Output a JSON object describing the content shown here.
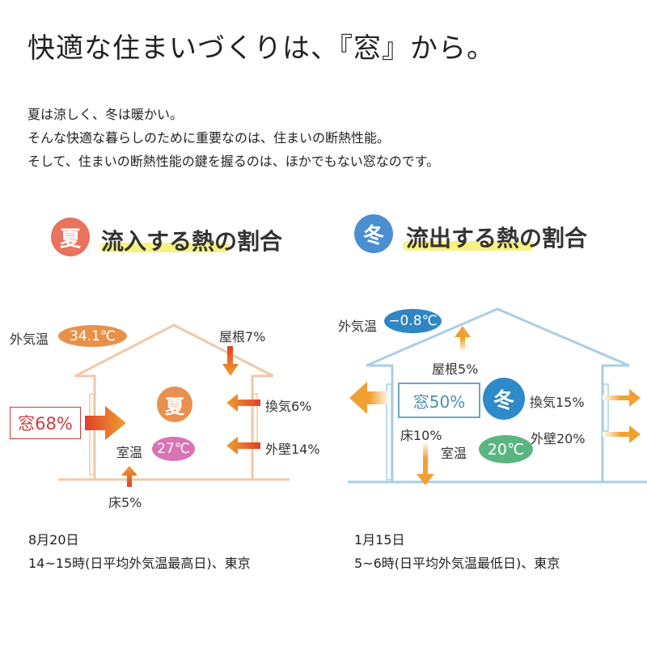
{
  "title": "快適な住まいづくりは、『窓』から。",
  "intro": [
    "夏は涼しく、冬は暖かい。",
    "そんな快適な暮らしのために重要なのは、住まいの断熱性能。",
    "そして、住まいの断熱性能の鍵を握るのは、ほかでもない窓なのです。"
  ],
  "summer": {
    "badge": "夏",
    "heading": "流入する熱の割合",
    "outside_label": "外気温",
    "outside_temp": "34.1℃",
    "roof": "屋根7%",
    "ventilation": "換気6%",
    "wall": "外壁14%",
    "window": "窓68%",
    "floor": "床5%",
    "center": "夏",
    "room_label": "室温",
    "room_temp": "27℃",
    "date": "8月20日",
    "note": "14~15時(日平均外気温最高日)、東京",
    "colors": {
      "badge": "#e8735e",
      "house": "#f0c8a8",
      "outside": "#e8914a",
      "room": "#d874b4",
      "window": "#d43a3a"
    }
  },
  "winter": {
    "badge": "冬",
    "heading": "流出する熱の割合",
    "outside_label": "外気温",
    "outside_temp": "−0.8℃",
    "roof": "屋根5%",
    "ventilation": "換気15%",
    "wall": "外壁20%",
    "window": "窓50%",
    "floor": "床10%",
    "center": "冬",
    "room_label": "室温",
    "room_temp": "20℃",
    "date": "1月15日",
    "note": "5~6時(日平均外気温最低日)、東京",
    "colors": {
      "badge": "#4a8fd0",
      "house": "#a9cfe3",
      "outside": "#2f86c3",
      "room": "#5bb581",
      "window": "#4a90b0"
    }
  }
}
